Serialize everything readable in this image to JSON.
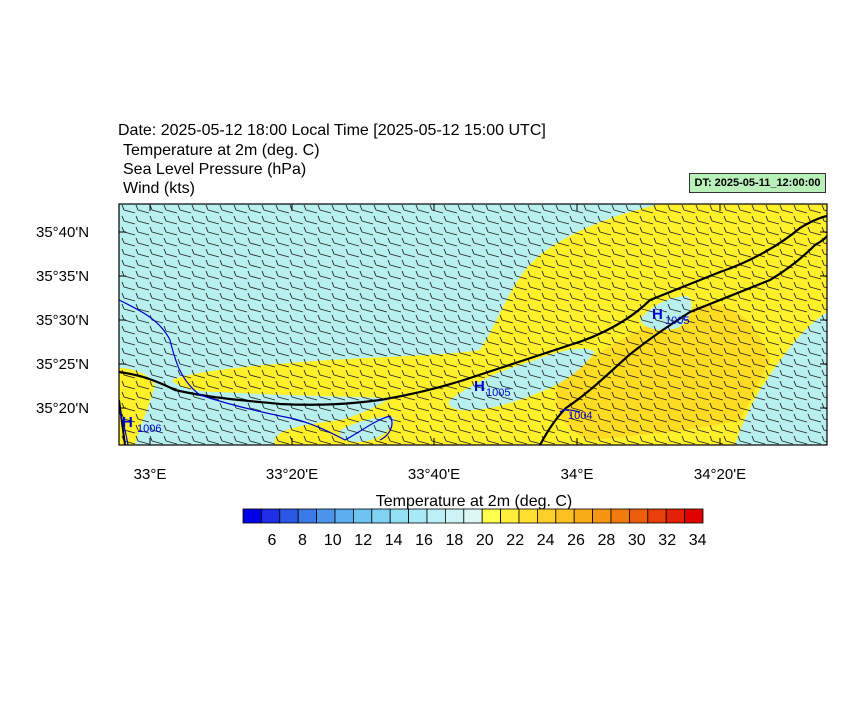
{
  "header": {
    "date_line": "Date: 2025-05-12  18:00 Local Time [2025-05-12  15:00 UTC]",
    "field1": "Temperature at 2m   (deg. C)",
    "field2": "Sea Level Pressure   (hPa)",
    "field3": "Wind   (kts)"
  },
  "badge": "DT: 2025-05-11_12:00:00",
  "axes": {
    "lat_labels": [
      "35°40'N",
      "35°35'N",
      "35°30'N",
      "35°25'N",
      "35°20'N"
    ],
    "lon_labels": [
      "33°E",
      "33°20'E",
      "33°40'E",
      "34°E",
      "34°20'E"
    ]
  },
  "isobars": [
    {
      "label": "1006"
    },
    {
      "label": "1005"
    },
    {
      "label": "1005"
    },
    {
      "label": "1004"
    }
  ],
  "colorbar": {
    "title": "Temperature at 2m  (deg. C)",
    "labels": [
      "6",
      "8",
      "10",
      "12",
      "14",
      "16",
      "18",
      "20",
      "22",
      "24",
      "26",
      "28",
      "30",
      "32",
      "34"
    ],
    "colors": [
      "#0000e6",
      "#1f2fe8",
      "#2a58e4",
      "#3a79e6",
      "#4a95ea",
      "#5aaeee",
      "#6cc2f0",
      "#80d2f2",
      "#93dff4",
      "#a8e9f6",
      "#bbf0f6",
      "#ccf4f4",
      "#dcf7f4",
      "#ffff4d",
      "#ffef3a",
      "#ffe030",
      "#ffd028",
      "#fcc020",
      "#f8ac18",
      "#f49612",
      "#f07c0e",
      "#ec5e0c",
      "#e84008",
      "#e42006",
      "#e00000"
    ]
  },
  "colors": {
    "sea": "#b8f0ef",
    "warm": "#fff02a",
    "warmer": "#ffd21e",
    "coast": "#000000",
    "isobar": "#0000cc"
  }
}
